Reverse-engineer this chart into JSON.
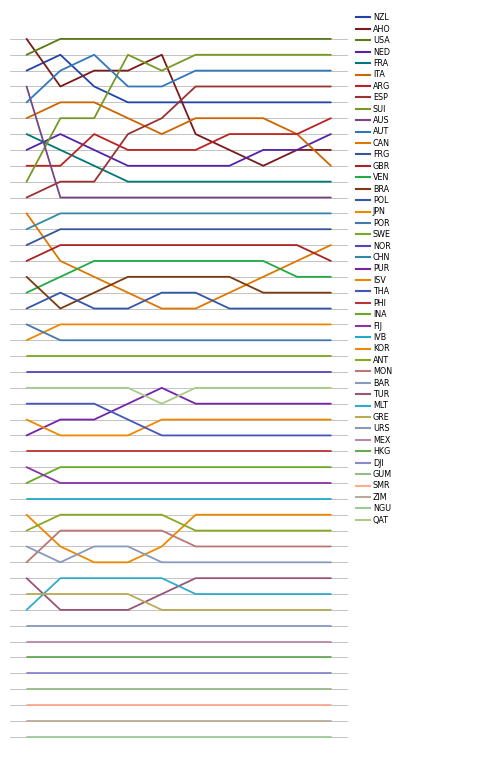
{
  "teams": [
    "NZL",
    "AHO",
    "USA",
    "NED",
    "FRA",
    "ITA",
    "ARG",
    "ESP",
    "SUI",
    "AUS",
    "AUT",
    "CAN",
    "FRG",
    "GBR",
    "VEN",
    "BRA",
    "POL",
    "JPN",
    "POR",
    "SWE",
    "NOR",
    "CHN",
    "PUR",
    "ISV",
    "THA",
    "PHI",
    "INA",
    "FIJ",
    "IVB",
    "KOR",
    "ANT",
    "MON",
    "BAR",
    "TUR",
    "MLT",
    "GRE",
    "URS",
    "MEX",
    "HKG",
    "DJI",
    "GUM",
    "SMR",
    "ZIM",
    "NGU",
    "QAT"
  ],
  "colors": {
    "NZL": "#2244AA",
    "AHO": "#7B1A1A",
    "USA": "#5A7A1A",
    "NED": "#5522AA",
    "FRA": "#007777",
    "ITA": "#CC6600",
    "ARG": "#BB2222",
    "ESP": "#993333",
    "SUI": "#779922",
    "AUS": "#774488",
    "AUT": "#3377BB",
    "CAN": "#DD7700",
    "FRG": "#335599",
    "GBR": "#AA2222",
    "VEN": "#22AA44",
    "BRA": "#7B3A10",
    "POL": "#3355AA",
    "JPN": "#EE8800",
    "POR": "#4477AA",
    "SWE": "#77AA22",
    "NOR": "#5544BB",
    "CHN": "#3388AA",
    "PUR": "#7722AA",
    "ISV": "#EE8800",
    "THA": "#4455BB",
    "PHI": "#BB3333",
    "INA": "#66AA22",
    "FIJ": "#8833AA",
    "IVB": "#22AACC",
    "KOR": "#EE8800",
    "ANT": "#88AA22",
    "MON": "#BB7777",
    "BAR": "#8899BB",
    "TUR": "#995577",
    "MLT": "#33AACC",
    "GRE": "#BBAA55",
    "URS": "#8899BB",
    "MEX": "#BB88AA",
    "HKG": "#66AA55",
    "DJI": "#8888CC",
    "GUM": "#99BB88",
    "SMR": "#FFAA88",
    "ZIM": "#BBAA99",
    "NGU": "#99CC99",
    "QAT": "#AACC88"
  },
  "standings": {
    "NZL": [
      3,
      2,
      4,
      5,
      5,
      5,
      5,
      5,
      5,
      5
    ],
    "AHO": [
      1,
      4,
      3,
      3,
      2,
      7,
      8,
      9,
      8,
      8
    ],
    "USA": [
      2,
      1,
      1,
      1,
      1,
      1,
      1,
      1,
      1,
      1
    ],
    "NED": [
      8,
      7,
      8,
      9,
      9,
      9,
      9,
      8,
      8,
      7
    ],
    "FRA": [
      7,
      8,
      9,
      10,
      10,
      10,
      10,
      10,
      10,
      10
    ],
    "ITA": [
      6,
      5,
      5,
      6,
      7,
      6,
      6,
      6,
      7,
      9
    ],
    "ARG": [
      9,
      9,
      7,
      8,
      8,
      8,
      7,
      7,
      7,
      6
    ],
    "ESP": [
      11,
      10,
      10,
      7,
      6,
      4,
      4,
      4,
      4,
      4
    ],
    "SUI": [
      10,
      6,
      6,
      2,
      3,
      2,
      2,
      2,
      2,
      2
    ],
    "AUS": [
      4,
      11,
      11,
      11,
      11,
      11,
      11,
      11,
      11,
      11
    ],
    "AUT": [
      5,
      3,
      2,
      4,
      4,
      3,
      3,
      3,
      3,
      3
    ],
    "CAN": [
      12,
      15,
      16,
      17,
      18,
      18,
      17,
      16,
      15,
      14
    ],
    "FRG": [
      14,
      13,
      13,
      13,
      13,
      13,
      13,
      13,
      13,
      13
    ],
    "GBR": [
      15,
      14,
      14,
      14,
      14,
      14,
      14,
      14,
      14,
      15
    ],
    "VEN": [
      17,
      16,
      15,
      15,
      15,
      15,
      15,
      15,
      16,
      16
    ],
    "BRA": [
      16,
      18,
      17,
      16,
      16,
      16,
      16,
      17,
      17,
      17
    ],
    "POL": [
      18,
      17,
      18,
      18,
      17,
      17,
      18,
      18,
      18,
      18
    ],
    "JPN": [
      20,
      19,
      19,
      19,
      19,
      19,
      19,
      19,
      19,
      19
    ],
    "POR": [
      19,
      20,
      20,
      20,
      20,
      20,
      20,
      20,
      20,
      20
    ],
    "SWE": [
      21,
      21,
      21,
      21,
      21,
      21,
      21,
      21,
      21,
      21
    ],
    "NOR": [
      22,
      22,
      22,
      22,
      22,
      22,
      22,
      22,
      22,
      22
    ],
    "CHN": [
      13,
      12,
      12,
      12,
      12,
      12,
      12,
      12,
      12,
      12
    ],
    "PUR": [
      26,
      25,
      25,
      24,
      23,
      24,
      24,
      24,
      24,
      24
    ],
    "ISV": [
      25,
      26,
      26,
      26,
      25,
      25,
      25,
      25,
      25,
      25
    ],
    "THA": [
      24,
      24,
      24,
      25,
      26,
      26,
      26,
      26,
      26,
      26
    ],
    "PHI": [
      27,
      27,
      27,
      27,
      27,
      27,
      27,
      27,
      27,
      27
    ],
    "INA": [
      29,
      28,
      28,
      28,
      28,
      28,
      28,
      28,
      28,
      28
    ],
    "FIJ": [
      28,
      29,
      29,
      29,
      29,
      29,
      29,
      29,
      29,
      29
    ],
    "IVB": [
      30,
      30,
      30,
      30,
      30,
      30,
      30,
      30,
      30,
      30
    ],
    "KOR": [
      31,
      33,
      34,
      34,
      33,
      31,
      31,
      31,
      31,
      31
    ],
    "ANT": [
      32,
      31,
      31,
      31,
      31,
      32,
      32,
      32,
      32,
      32
    ],
    "MON": [
      34,
      32,
      32,
      32,
      32,
      33,
      33,
      33,
      33,
      33
    ],
    "BAR": [
      33,
      34,
      33,
      33,
      34,
      34,
      34,
      34,
      34,
      34
    ],
    "TUR": [
      35,
      37,
      37,
      37,
      36,
      35,
      35,
      35,
      35,
      35
    ],
    "MLT": [
      37,
      35,
      35,
      35,
      35,
      36,
      36,
      36,
      36,
      36
    ],
    "GRE": [
      36,
      36,
      36,
      36,
      37,
      37,
      37,
      37,
      37,
      37
    ],
    "URS": [
      38,
      38,
      38,
      38,
      38,
      38,
      38,
      38,
      38,
      38
    ],
    "MEX": [
      39,
      39,
      39,
      39,
      39,
      39,
      39,
      39,
      39,
      39
    ],
    "HKG": [
      40,
      40,
      40,
      40,
      40,
      40,
      40,
      40,
      40,
      40
    ],
    "DJI": [
      41,
      41,
      41,
      41,
      41,
      41,
      41,
      41,
      41,
      41
    ],
    "GUM": [
      42,
      42,
      42,
      42,
      42,
      42,
      42,
      42,
      42,
      42
    ],
    "SMR": [
      43,
      43,
      43,
      43,
      43,
      43,
      43,
      43,
      43,
      43
    ],
    "ZIM": [
      44,
      44,
      44,
      44,
      44,
      44,
      44,
      44,
      44,
      44
    ],
    "NGU": [
      45,
      45,
      45,
      45,
      45,
      45,
      45,
      45,
      45,
      45
    ],
    "QAT": [
      23,
      23,
      23,
      23,
      24,
      23,
      23,
      23,
      23,
      23
    ]
  },
  "n_days": 10,
  "n_ranks": 45,
  "xlim": [
    0.5,
    10.5
  ],
  "ylim_top": 0,
  "ylim_bottom": 46
}
